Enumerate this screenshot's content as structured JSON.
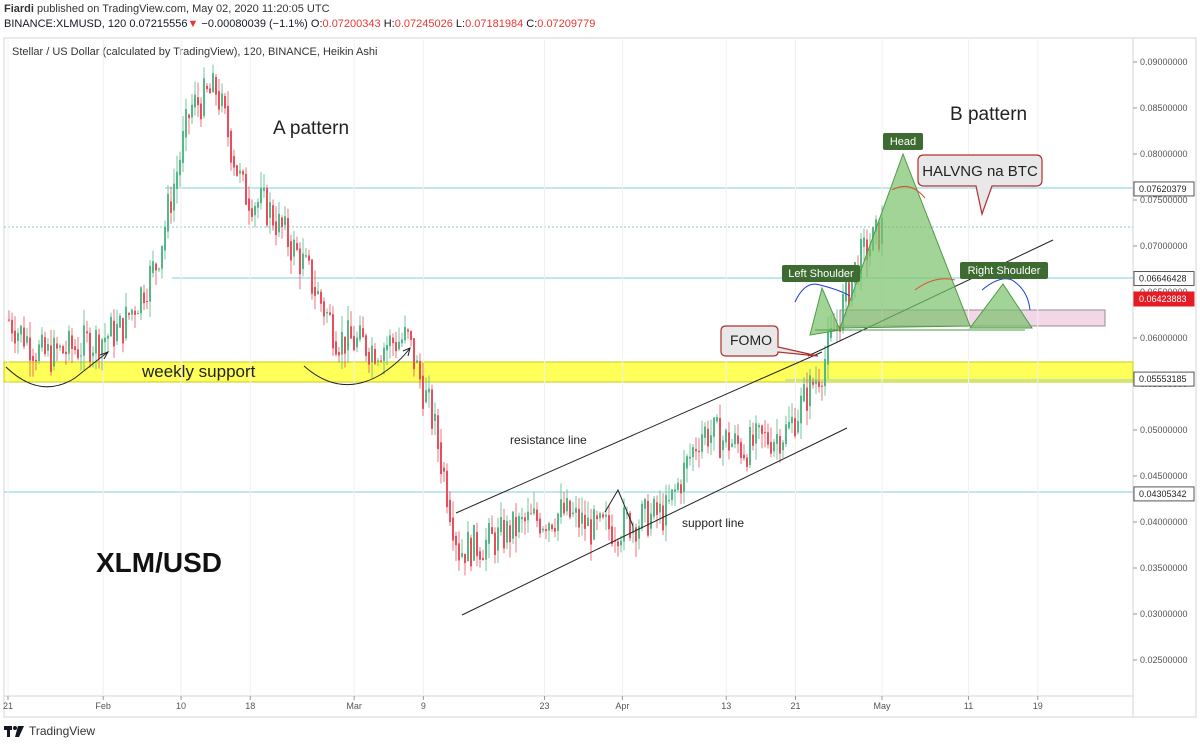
{
  "header": {
    "author": "Fiardi",
    "published_text": "published on TradingView.com, May 02, 2020 11:20:05 UTC",
    "symbol": "BINANCE:XLMUSD, 120",
    "last_price": "0.07215556",
    "change": "−0.00080039 (−1.1%)",
    "open_label": "O:",
    "open": "0.07200343",
    "high_label": "H:",
    "high": "0.07245026",
    "low_label": "L:",
    "low": "0.07181984",
    "close_label": "C:",
    "close": "0.07209779"
  },
  "footer": {
    "brand": "TradingView"
  },
  "chart_data": {
    "type": "line",
    "title": "Stellar / US Dollar (calculated by TradingView), 120, BINANCE, Heikin Ashi",
    "y_axis": {
      "ticks": [
        "0.09000000",
        "0.08500000",
        "0.08000000",
        "0.07500000",
        "0.07000000",
        "0.06500000",
        "0.06000000",
        "0.05500000",
        "0.05000000",
        "0.04500000",
        "0.04000000",
        "0.03500000",
        "0.03000000",
        "0.02500000"
      ],
      "price_labels": [
        {
          "text": "0.07620379",
          "kind": "level"
        },
        {
          "text": "0.06646428",
          "kind": "level"
        },
        {
          "text": "0.06423883",
          "kind": "current"
        },
        {
          "text": "0.05553185",
          "kind": "level"
        },
        {
          "text": "0.04305342",
          "kind": "level"
        }
      ]
    },
    "x_axis": {
      "ticks": [
        "21",
        "Feb",
        "10",
        "18",
        "Mar",
        "9",
        "23",
        "Apr",
        "13",
        "21",
        "May",
        "11",
        "19"
      ]
    },
    "series": [
      {
        "x": [
          "2020-01-21",
          "2020-01-25",
          "2020-01-29",
          "2020-02-03",
          "2020-02-07",
          "2020-02-11",
          "2020-02-14",
          "2020-02-17",
          "2020-02-20",
          "2020-02-24",
          "2020-02-28",
          "2020-03-03",
          "2020-03-07",
          "2020-03-10",
          "2020-03-13",
          "2020-03-17",
          "2020-03-21",
          "2020-03-25",
          "2020-03-29",
          "2020-04-02",
          "2020-04-06",
          "2020-04-10",
          "2020-04-15",
          "2020-04-20",
          "2020-04-24",
          "2020-04-28",
          "2020-05-01"
        ],
        "values": [
          0.062,
          0.058,
          0.059,
          0.061,
          0.068,
          0.085,
          0.087,
          0.076,
          0.074,
          0.068,
          0.06,
          0.059,
          0.06,
          0.051,
          0.037,
          0.038,
          0.04,
          0.041,
          0.039,
          0.04,
          0.041,
          0.05,
          0.048,
          0.05,
          0.057,
          0.068,
          0.072
        ]
      }
    ],
    "annotations": {
      "a_pattern": "A pattern",
      "b_pattern": "B pattern",
      "weekly_support": "weekly support",
      "resistance_line": "resistance line",
      "support_line": "support line",
      "head": "Head",
      "left_shoulder": "Left Shoulder",
      "right_shoulder": "Right Shoulder",
      "fomo": "FOMO",
      "halving": "HALVNG na BTC",
      "pair": "XLM/USD"
    }
  }
}
